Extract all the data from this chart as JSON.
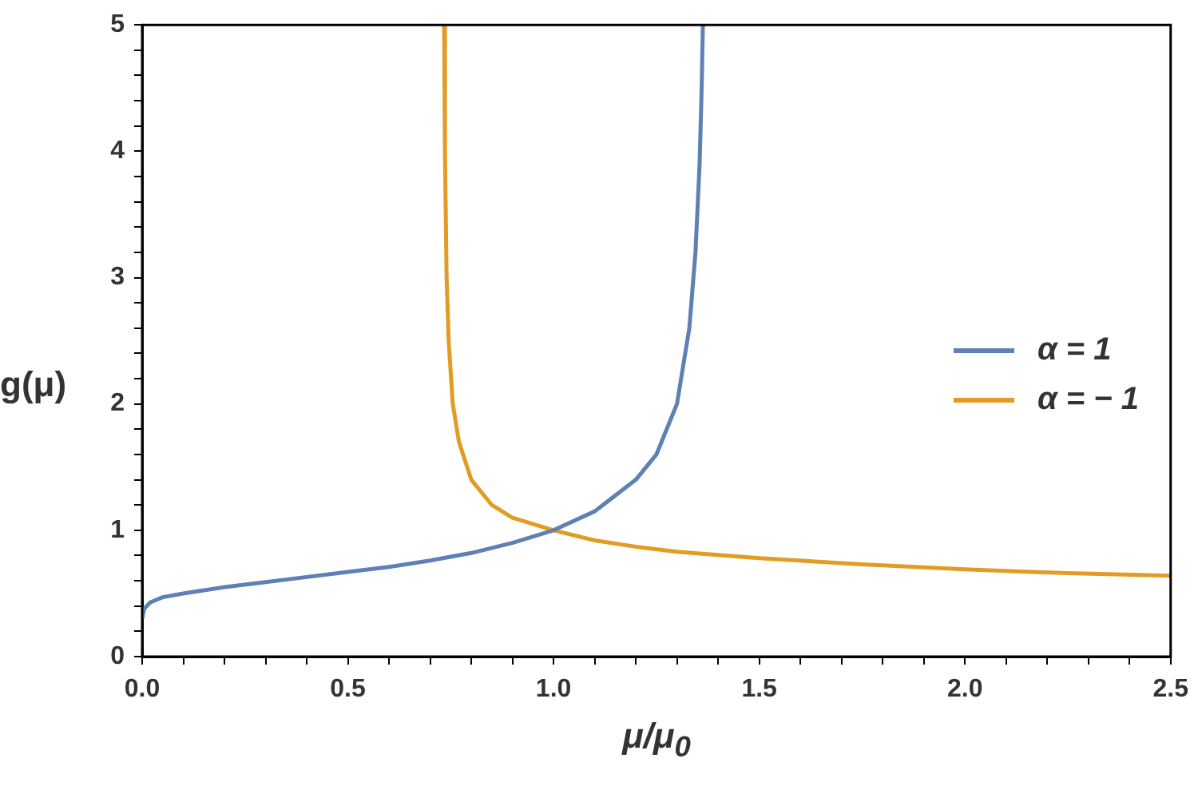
{
  "chart_data": {
    "type": "line",
    "xlabel": "μ/μ$_{0}$",
    "ylabel": "g(μ)",
    "xlim": [
      0,
      2.5
    ],
    "ylim": [
      0,
      5
    ],
    "xticks": [
      {
        "value": 0,
        "label": "0.0"
      },
      {
        "value": 0.1,
        "label": null
      },
      {
        "value": 0.2,
        "label": null
      },
      {
        "value": 0.3,
        "label": null
      },
      {
        "value": 0.4,
        "label": null
      },
      {
        "value": 0.5,
        "label": "0.5"
      },
      {
        "value": 0.6,
        "label": null
      },
      {
        "value": 0.7,
        "label": null
      },
      {
        "value": 0.8,
        "label": null
      },
      {
        "value": 0.9,
        "label": null
      },
      {
        "value": 1,
        "label": "1.0"
      },
      {
        "value": 1.1,
        "label": null
      },
      {
        "value": 1.2,
        "label": null
      },
      {
        "value": 1.3,
        "label": null
      },
      {
        "value": 1.4,
        "label": null
      },
      {
        "value": 1.5,
        "label": "1.5"
      },
      {
        "value": 1.6,
        "label": null
      },
      {
        "value": 1.7,
        "label": null
      },
      {
        "value": 1.8,
        "label": null
      },
      {
        "value": 1.9,
        "label": null
      },
      {
        "value": 2,
        "label": "2.0"
      },
      {
        "value": 2.1,
        "label": null
      },
      {
        "value": 2.2,
        "label": null
      },
      {
        "value": 2.3,
        "label": null
      },
      {
        "value": 2.4,
        "label": null
      },
      {
        "value": 2.5,
        "label": "2.5"
      }
    ],
    "yticks": [
      0,
      {
        "value": 0.2,
        "label": null
      },
      {
        "value": 0.4,
        "label": null
      },
      {
        "value": 0.6,
        "label": null
      },
      {
        "value": 0.8,
        "label": null
      },
      1,
      {
        "value": 1.2,
        "label": null
      },
      {
        "value": 1.4,
        "label": null
      },
      {
        "value": 1.6,
        "label": null
      },
      {
        "value": 1.8,
        "label": null
      },
      2,
      {
        "value": 2.2,
        "label": null
      },
      {
        "value": 2.4,
        "label": null
      },
      {
        "value": 2.6,
        "label": null
      },
      {
        "value": 2.8,
        "label": null
      },
      3,
      {
        "value": 3.2,
        "label": null
      },
      {
        "value": 3.4,
        "label": null
      },
      {
        "value": 3.6,
        "label": null
      },
      {
        "value": 3.8,
        "label": null
      },
      4,
      {
        "value": 4.2,
        "label": null
      },
      {
        "value": 4.4,
        "label": null
      },
      {
        "value": 4.6,
        "label": null
      },
      {
        "value": 4.8,
        "label": null
      },
      5
    ],
    "grid": false,
    "legend": "right",
    "marker": "none",
    "line_style": "solid",
    "series": [
      {
        "name": "α = 1",
        "color": "#5e81b5",
        "x": [
          0,
          0.005,
          0.02,
          0.05,
          0.1,
          0.2,
          0.3,
          0.4,
          0.5,
          0.6,
          0.7,
          0.8,
          0.9,
          1.0,
          1.1,
          1.2,
          1.25,
          1.3,
          1.33,
          1.345,
          1.355,
          1.36,
          1.363
        ],
        "values": [
          0.3,
          0.38,
          0.43,
          0.47,
          0.5,
          0.55,
          0.59,
          0.63,
          0.67,
          0.71,
          0.76,
          0.82,
          0.9,
          1.0,
          1.15,
          1.4,
          1.6,
          2.0,
          2.6,
          3.2,
          3.9,
          4.5,
          5
        ]
      },
      {
        "name": "α = − 1",
        "color": "#e19c24",
        "x": [
          0.734,
          0.736,
          0.74,
          0.745,
          0.755,
          0.77,
          0.8,
          0.85,
          0.9,
          1.0,
          1.1,
          1.2,
          1.3,
          1.5,
          1.75,
          2.0,
          2.25,
          2.5
        ],
        "values": [
          5,
          4,
          3,
          2.5,
          2,
          1.7,
          1.4,
          1.2,
          1.1,
          1.0,
          0.92,
          0.87,
          0.83,
          0.78,
          0.73,
          0.69,
          0.66,
          0.64
        ]
      }
    ]
  }
}
